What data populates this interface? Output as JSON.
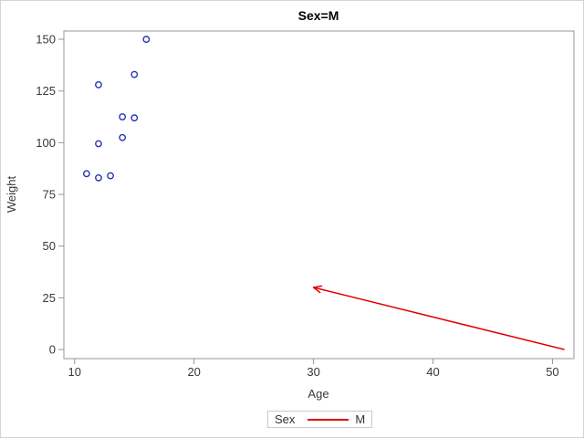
{
  "figure": {
    "title": "Sex=M"
  },
  "chart_data": {
    "type": "scatter",
    "title": "Sex=M",
    "xlabel": "Age",
    "ylabel": "Weight",
    "xlim": [
      9.1,
      51.8
    ],
    "ylim": [
      -4.4,
      154
    ],
    "xticks": [
      10,
      20,
      30,
      40,
      50
    ],
    "yticks": [
      0,
      25,
      50,
      75,
      100,
      125,
      150
    ],
    "grid": false,
    "legend_position": "bottom",
    "legend": {
      "title": "Sex",
      "entries": [
        {
          "label": "M",
          "swatch": "line",
          "color": "#e40000"
        }
      ]
    },
    "series": [
      {
        "name": "M",
        "marker": "open-circle",
        "color": "#2733b3",
        "points": [
          [
            11,
            85
          ],
          [
            12,
            83
          ],
          [
            12,
            99.5
          ],
          [
            12,
            128
          ],
          [
            13,
            84
          ],
          [
            14,
            102.5
          ],
          [
            14,
            112.5
          ],
          [
            15,
            112
          ],
          [
            15,
            133
          ],
          [
            16,
            150
          ]
        ]
      }
    ],
    "annotations": [
      {
        "type": "arrow",
        "from": [
          51,
          0
        ],
        "to": [
          30,
          30
        ],
        "color": "#e40000"
      }
    ]
  }
}
